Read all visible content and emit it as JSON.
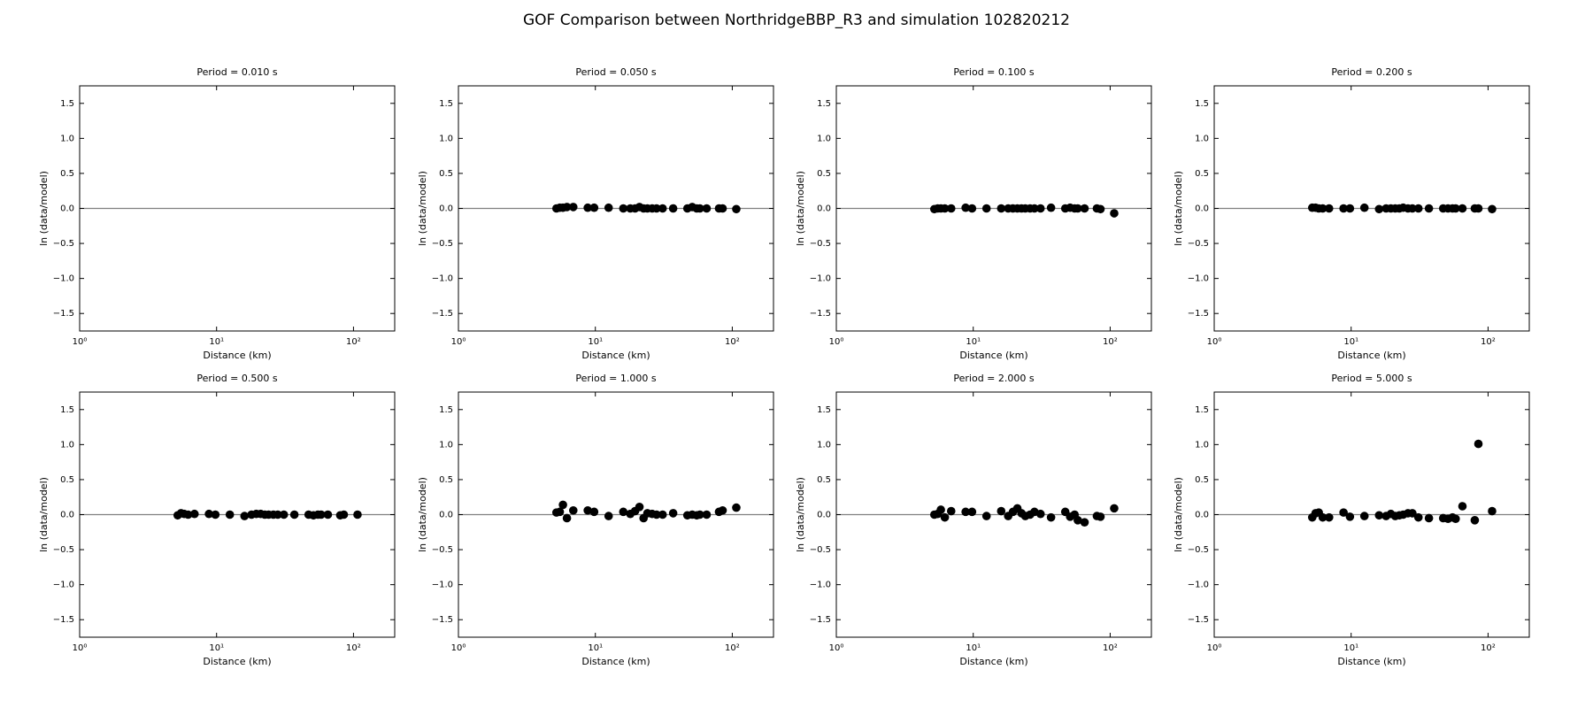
{
  "title": "GOF Comparison between NorthridgeBBP_R3 and simulation 102820212",
  "chart_data": [
    {
      "type": "scatter",
      "title": "Period = 0.010 s",
      "x_label": "Distance (km)",
      "y_label": "ln (data/model)",
      "color": "#000000",
      "xscale": "log",
      "hline": 0,
      "x": [],
      "y": [],
      "xlim": [
        1,
        200
      ],
      "ylim": [
        -1.75,
        1.75
      ],
      "xticks": [
        {
          "value": 1,
          "label": "10⁰"
        },
        {
          "value": 10,
          "label": "10¹"
        },
        {
          "value": 100,
          "label": "10²"
        }
      ],
      "yticks": [
        {
          "value": -1.5,
          "label": "−1.5"
        },
        {
          "value": -1,
          "label": "−1.0"
        },
        {
          "value": -0.5,
          "label": "−0.5"
        },
        {
          "value": 0,
          "label": "0.0"
        },
        0.5,
        {
          "value": 1,
          "label": "1.0"
        },
        1.5
      ]
    },
    {
      "type": "scatter",
      "title": "Period = 0.050 s",
      "x_label": "Distance (km)",
      "y_label": "ln (data/model)",
      "color": "#000000",
      "xscale": "log",
      "hline": 0,
      "x": [
        5.2,
        5.5,
        5.8,
        6.2,
        6.9,
        8.8,
        9.8,
        12.5,
        16,
        18,
        19.5,
        21,
        22.5,
        24,
        26,
        28,
        31,
        37,
        47,
        51,
        55,
        58,
        65,
        80,
        85,
        107
      ],
      "y": [
        0.0,
        0.01,
        0.01,
        0.02,
        0.02,
        0.01,
        0.01,
        0.01,
        0.0,
        0.0,
        0.0,
        0.02,
        0.0,
        0.0,
        0.0,
        0.0,
        0.0,
        0.0,
        0.0,
        0.02,
        0.0,
        0.0,
        0.0,
        0.0,
        0.0,
        -0.01
      ],
      "xlim": [
        1,
        200
      ],
      "ylim": [
        -1.75,
        1.75
      ],
      "xticks": [
        {
          "value": 1,
          "label": "10⁰"
        },
        {
          "value": 10,
          "label": "10¹"
        },
        {
          "value": 100,
          "label": "10²"
        }
      ],
      "yticks": [
        {
          "value": -1.5,
          "label": "−1.5"
        },
        {
          "value": -1,
          "label": "−1.0"
        },
        {
          "value": -0.5,
          "label": "−0.5"
        },
        {
          "value": 0,
          "label": "0.0"
        },
        0.5,
        {
          "value": 1,
          "label": "1.0"
        },
        1.5
      ]
    },
    {
      "type": "scatter",
      "title": "Period = 0.100 s",
      "x_label": "Distance (km)",
      "y_label": "ln (data/model)",
      "color": "#000000",
      "xscale": "log",
      "hline": 0,
      "x": [
        5.2,
        5.5,
        5.8,
        6.2,
        6.9,
        8.8,
        9.8,
        12.5,
        16,
        18,
        19.5,
        21,
        22.5,
        24,
        26,
        28,
        31,
        37,
        47,
        51,
        55,
        58,
        65,
        80,
        85,
        107
      ],
      "y": [
        -0.01,
        0.0,
        0.0,
        0.0,
        0.0,
        0.01,
        0.0,
        0.0,
        0.0,
        0.0,
        0.0,
        0.0,
        0.0,
        0.0,
        0.0,
        0.0,
        0.0,
        0.01,
        0.0,
        0.01,
        0.0,
        0.0,
        0.0,
        0.0,
        -0.01,
        -0.07
      ],
      "xlim": [
        1,
        200
      ],
      "ylim": [
        -1.75,
        1.75
      ],
      "xticks": [
        {
          "value": 1,
          "label": "10⁰"
        },
        {
          "value": 10,
          "label": "10¹"
        },
        {
          "value": 100,
          "label": "10²"
        }
      ],
      "yticks": [
        {
          "value": -1.5,
          "label": "−1.5"
        },
        {
          "value": -1,
          "label": "−1.0"
        },
        {
          "value": -0.5,
          "label": "−0.5"
        },
        {
          "value": 0,
          "label": "0.0"
        },
        0.5,
        {
          "value": 1,
          "label": "1.0"
        },
        1.5
      ]
    },
    {
      "type": "scatter",
      "title": "Period = 0.200 s",
      "x_label": "Distance (km)",
      "y_label": "ln (data/model)",
      "color": "#000000",
      "xscale": "log",
      "hline": 0,
      "x": [
        5.2,
        5.5,
        5.8,
        6.2,
        6.9,
        8.8,
        9.8,
        12.5,
        16,
        18,
        19.5,
        21,
        22.5,
        24,
        26,
        28,
        31,
        37,
        47,
        51,
        55,
        58,
        65,
        80,
        85,
        107
      ],
      "y": [
        0.01,
        0.01,
        0.0,
        0.0,
        0.0,
        0.0,
        0.0,
        0.01,
        -0.01,
        0.0,
        0.0,
        0.0,
        0.0,
        0.01,
        0.0,
        0.0,
        0.0,
        0.0,
        0.0,
        0.0,
        0.0,
        0.0,
        0.0,
        0.0,
        0.0,
        -0.01
      ],
      "xlim": [
        1,
        200
      ],
      "ylim": [
        -1.75,
        1.75
      ],
      "xticks": [
        {
          "value": 1,
          "label": "10⁰"
        },
        {
          "value": 10,
          "label": "10¹"
        },
        {
          "value": 100,
          "label": "10²"
        }
      ],
      "yticks": [
        {
          "value": -1.5,
          "label": "−1.5"
        },
        {
          "value": -1,
          "label": "−1.0"
        },
        {
          "value": -0.5,
          "label": "−0.5"
        },
        {
          "value": 0,
          "label": "0.0"
        },
        0.5,
        {
          "value": 1,
          "label": "1.0"
        },
        1.5
      ]
    },
    {
      "type": "scatter",
      "title": "Period = 0.500 s",
      "x_label": "Distance (km)",
      "y_label": "ln (data/model)",
      "color": "#000000",
      "xscale": "log",
      "hline": 0,
      "x": [
        5.2,
        5.5,
        5.8,
        6.2,
        6.9,
        8.8,
        9.8,
        12.5,
        16,
        18,
        19.5,
        21,
        22.5,
        24,
        26,
        28,
        31,
        37,
        47,
        51,
        55,
        58,
        65,
        80,
        85,
        107
      ],
      "y": [
        -0.01,
        0.02,
        0.01,
        0.0,
        0.01,
        0.01,
        0.0,
        0.0,
        -0.02,
        0.0,
        0.01,
        0.01,
        0.0,
        0.0,
        0.0,
        0.0,
        0.0,
        0.0,
        0.0,
        -0.01,
        0.0,
        0.0,
        0.0,
        -0.01,
        0.0,
        0.0
      ],
      "xlim": [
        1,
        200
      ],
      "ylim": [
        -1.75,
        1.75
      ],
      "xticks": [
        {
          "value": 1,
          "label": "10⁰"
        },
        {
          "value": 10,
          "label": "10¹"
        },
        {
          "value": 100,
          "label": "10²"
        }
      ],
      "yticks": [
        {
          "value": -1.5,
          "label": "−1.5"
        },
        {
          "value": -1,
          "label": "−1.0"
        },
        {
          "value": -0.5,
          "label": "−0.5"
        },
        {
          "value": 0,
          "label": "0.0"
        },
        0.5,
        {
          "value": 1,
          "label": "1.0"
        },
        1.5
      ]
    },
    {
      "type": "scatter",
      "title": "Period = 1.000 s",
      "x_label": "Distance (km)",
      "y_label": "ln (data/model)",
      "color": "#000000",
      "xscale": "log",
      "hline": 0,
      "x": [
        5.2,
        5.5,
        5.8,
        6.2,
        6.9,
        8.8,
        9.8,
        12.5,
        16,
        18,
        19.5,
        21,
        22.5,
        24,
        26,
        28,
        31,
        37,
        47,
        51,
        55,
        58,
        65,
        80,
        85,
        107
      ],
      "y": [
        0.03,
        0.04,
        0.14,
        -0.05,
        0.06,
        0.06,
        0.04,
        -0.02,
        0.04,
        0.01,
        0.05,
        0.11,
        -0.05,
        0.02,
        0.01,
        0.0,
        0.0,
        0.02,
        -0.01,
        0.0,
        -0.01,
        0.0,
        0.0,
        0.04,
        0.06,
        0.1
      ],
      "xlim": [
        1,
        200
      ],
      "ylim": [
        -1.75,
        1.75
      ],
      "xticks": [
        {
          "value": 1,
          "label": "10⁰"
        },
        {
          "value": 10,
          "label": "10¹"
        },
        {
          "value": 100,
          "label": "10²"
        }
      ],
      "yticks": [
        {
          "value": -1.5,
          "label": "−1.5"
        },
        {
          "value": -1,
          "label": "−1.0"
        },
        {
          "value": -0.5,
          "label": "−0.5"
        },
        {
          "value": 0,
          "label": "0.0"
        },
        0.5,
        {
          "value": 1,
          "label": "1.0"
        },
        1.5
      ]
    },
    {
      "type": "scatter",
      "title": "Period = 2.000 s",
      "x_label": "Distance (km)",
      "y_label": "ln (data/model)",
      "color": "#000000",
      "xscale": "log",
      "hline": 0,
      "x": [
        5.2,
        5.5,
        5.8,
        6.2,
        6.9,
        8.8,
        9.8,
        12.5,
        16,
        18,
        19.5,
        21,
        22.5,
        24,
        26,
        28,
        31,
        37,
        47,
        51,
        55,
        58,
        65,
        80,
        85,
        107
      ],
      "y": [
        0.0,
        0.01,
        0.07,
        -0.04,
        0.05,
        0.04,
        0.04,
        -0.02,
        0.05,
        -0.02,
        0.04,
        0.09,
        0.02,
        -0.02,
        0.0,
        0.04,
        0.01,
        -0.04,
        0.04,
        -0.03,
        0.0,
        -0.08,
        -0.11,
        -0.02,
        -0.03,
        0.09
      ],
      "xlim": [
        1,
        200
      ],
      "ylim": [
        -1.75,
        1.75
      ],
      "xticks": [
        {
          "value": 1,
          "label": "10⁰"
        },
        {
          "value": 10,
          "label": "10¹"
        },
        {
          "value": 100,
          "label": "10²"
        }
      ],
      "yticks": [
        {
          "value": -1.5,
          "label": "−1.5"
        },
        {
          "value": -1,
          "label": "−1.0"
        },
        {
          "value": -0.5,
          "label": "−0.5"
        },
        {
          "value": 0,
          "label": "0.0"
        },
        0.5,
        {
          "value": 1,
          "label": "1.0"
        },
        1.5
      ]
    },
    {
      "type": "scatter",
      "title": "Period = 5.000 s",
      "x_label": "Distance (km)",
      "y_label": "ln (data/model)",
      "color": "#000000",
      "xscale": "log",
      "hline": 0,
      "x": [
        5.2,
        5.5,
        5.8,
        6.2,
        6.9,
        8.8,
        9.8,
        12.5,
        16,
        18,
        19.5,
        21,
        22.5,
        24,
        26,
        28,
        31,
        37,
        47,
        51,
        55,
        58,
        65,
        80,
        85,
        107
      ],
      "y": [
        -0.04,
        0.02,
        0.03,
        -0.04,
        -0.04,
        0.03,
        -0.03,
        -0.02,
        -0.01,
        -0.02,
        0.01,
        -0.02,
        -0.01,
        0.0,
        0.02,
        0.02,
        -0.04,
        -0.05,
        -0.05,
        -0.06,
        -0.04,
        -0.06,
        0.12,
        -0.08,
        1.01,
        0.05
      ],
      "xlim": [
        1,
        200
      ],
      "ylim": [
        -1.75,
        1.75
      ],
      "xticks": [
        {
          "value": 1,
          "label": "10⁰"
        },
        {
          "value": 10,
          "label": "10¹"
        },
        {
          "value": 100,
          "label": "10²"
        }
      ],
      "yticks": [
        {
          "value": -1.5,
          "label": "−1.5"
        },
        {
          "value": -1,
          "label": "−1.0"
        },
        {
          "value": -0.5,
          "label": "−0.5"
        },
        {
          "value": 0,
          "label": "0.0"
        },
        0.5,
        {
          "value": 1,
          "label": "1.0"
        },
        1.5
      ]
    }
  ]
}
